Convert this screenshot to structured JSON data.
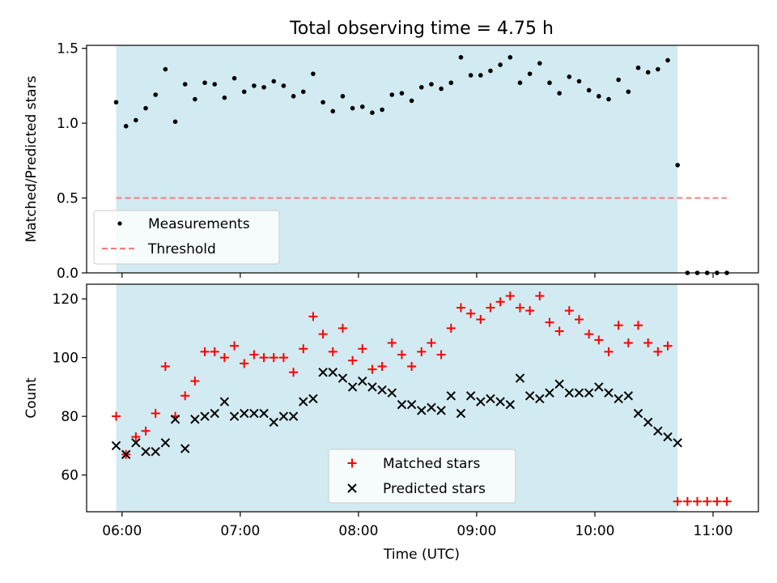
{
  "chart_data": [
    {
      "type": "scatter",
      "title": "Total observing time = 4.75 h",
      "ylabel": "Matched/Predicted stars",
      "xlabel": "",
      "ylim": [
        0,
        1.52
      ],
      "yticks": [
        0.0,
        0.5,
        1.0,
        1.5
      ],
      "ytick_labels": [
        "0.0",
        "0.5",
        "1.0",
        "1.5"
      ],
      "observing_window": [
        "05:57",
        "10:42"
      ],
      "series": [
        {
          "name": "Measurements",
          "marker": "dot",
          "color": "#000000",
          "x": [
            "05:57",
            "06:02",
            "06:07",
            "06:12",
            "06:17",
            "06:22",
            "06:27",
            "06:32",
            "06:37",
            "06:42",
            "06:47",
            "06:52",
            "06:57",
            "07:02",
            "07:07",
            "07:12",
            "07:17",
            "07:22",
            "07:27",
            "07:32",
            "07:37",
            "07:42",
            "07:47",
            "07:52",
            "07:57",
            "08:02",
            "08:07",
            "08:12",
            "08:17",
            "08:22",
            "08:27",
            "08:32",
            "08:37",
            "08:42",
            "08:47",
            "08:52",
            "08:57",
            "09:02",
            "09:07",
            "09:12",
            "09:17",
            "09:22",
            "09:27",
            "09:32",
            "09:37",
            "09:42",
            "09:47",
            "09:52",
            "09:57",
            "10:02",
            "10:07",
            "10:12",
            "10:17",
            "10:22",
            "10:27",
            "10:32",
            "10:37",
            "10:42",
            "10:47",
            "10:52",
            "10:57",
            "11:02",
            "11:07"
          ],
          "y": [
            1.14,
            0.98,
            1.02,
            1.1,
            1.19,
            1.36,
            1.01,
            1.26,
            1.16,
            1.27,
            1.26,
            1.17,
            1.3,
            1.21,
            1.25,
            1.24,
            1.28,
            1.25,
            1.18,
            1.21,
            1.33,
            1.14,
            1.08,
            1.18,
            1.1,
            1.11,
            1.07,
            1.09,
            1.19,
            1.2,
            1.15,
            1.24,
            1.26,
            1.23,
            1.27,
            1.44,
            1.32,
            1.32,
            1.35,
            1.39,
            1.44,
            1.27,
            1.33,
            1.4,
            1.27,
            1.2,
            1.31,
            1.28,
            1.22,
            1.18,
            1.16,
            1.29,
            1.21,
            1.37,
            1.34,
            1.36,
            1.42,
            0.72,
            0,
            0,
            0,
            0,
            0
          ]
        },
        {
          "name": "Threshold",
          "style": "dashed",
          "color": "#f08080",
          "x": [
            "05:57",
            "11:07"
          ],
          "y": [
            0.5,
            0.5
          ]
        }
      ],
      "legend": "lower-left",
      "grid": false
    },
    {
      "type": "scatter",
      "title": "",
      "ylabel": "Count",
      "xlabel": "Time (UTC)",
      "ylim": [
        47.5,
        125
      ],
      "yticks": [
        60,
        80,
        100,
        120
      ],
      "ytick_labels": [
        "60",
        "80",
        "100",
        "120"
      ],
      "xticks": [
        "06:00",
        "07:00",
        "08:00",
        "09:00",
        "10:00",
        "11:00"
      ],
      "observing_window": [
        "05:57",
        "10:42"
      ],
      "series": [
        {
          "name": "Matched stars",
          "marker": "plus",
          "color": "#ff0000",
          "x": [
            "05:57",
            "06:02",
            "06:07",
            "06:12",
            "06:17",
            "06:22",
            "06:27",
            "06:32",
            "06:37",
            "06:42",
            "06:47",
            "06:52",
            "06:57",
            "07:02",
            "07:07",
            "07:12",
            "07:17",
            "07:22",
            "07:27",
            "07:32",
            "07:37",
            "07:42",
            "07:47",
            "07:52",
            "07:57",
            "08:02",
            "08:07",
            "08:12",
            "08:17",
            "08:22",
            "08:27",
            "08:32",
            "08:37",
            "08:42",
            "08:47",
            "08:52",
            "08:57",
            "09:02",
            "09:07",
            "09:12",
            "09:17",
            "09:22",
            "09:27",
            "09:32",
            "09:37",
            "09:42",
            "09:47",
            "09:52",
            "09:57",
            "10:02",
            "10:07",
            "10:12",
            "10:17",
            "10:22",
            "10:27",
            "10:32",
            "10:37",
            "10:42",
            "10:47",
            "10:52",
            "10:57",
            "11:02",
            "11:07"
          ],
          "y": [
            80,
            67,
            73,
            75,
            81,
            97,
            80,
            87,
            92,
            102,
            102,
            100,
            104,
            98,
            101,
            100,
            100,
            100,
            95,
            103,
            114,
            108,
            102,
            110,
            99,
            103,
            96,
            97,
            105,
            101,
            97,
            102,
            105,
            101,
            110,
            117,
            115,
            113,
            117,
            119,
            121,
            117,
            116,
            121,
            112,
            109,
            116,
            113,
            108,
            106,
            102,
            111,
            105,
            111,
            105,
            102,
            104,
            51,
            51,
            51,
            51,
            51,
            51
          ]
        },
        {
          "name": "Predicted stars",
          "marker": "x",
          "color": "#000000",
          "x": [
            "05:57",
            "06:02",
            "06:07",
            "06:12",
            "06:17",
            "06:22",
            "06:27",
            "06:32",
            "06:37",
            "06:42",
            "06:47",
            "06:52",
            "06:57",
            "07:02",
            "07:07",
            "07:12",
            "07:17",
            "07:22",
            "07:27",
            "07:32",
            "07:37",
            "07:42",
            "07:47",
            "07:52",
            "07:57",
            "08:02",
            "08:07",
            "08:12",
            "08:17",
            "08:22",
            "08:27",
            "08:32",
            "08:37",
            "08:42",
            "08:47",
            "08:52",
            "08:57",
            "09:02",
            "09:07",
            "09:12",
            "09:17",
            "09:22",
            "09:27",
            "09:32",
            "09:37",
            "09:42",
            "09:47",
            "09:52",
            "09:57",
            "10:02",
            "10:07",
            "10:12",
            "10:17",
            "10:22",
            "10:27",
            "10:32",
            "10:37",
            "10:42"
          ],
          "y": [
            70,
            67,
            71,
            68,
            68,
            71,
            79,
            69,
            79,
            80,
            81,
            85,
            80,
            81,
            81,
            81,
            78,
            80,
            80,
            85,
            86,
            95,
            95,
            93,
            90,
            92,
            90,
            89,
            88,
            84,
            84,
            82,
            83,
            82,
            87,
            81,
            87,
            85,
            86,
            85,
            84,
            93,
            87,
            86,
            88,
            91,
            88,
            88,
            88,
            90,
            88,
            86,
            87,
            81,
            78,
            75,
            73,
            71
          ]
        }
      ],
      "legend": "lower-center",
      "grid": false
    }
  ],
  "colors": {
    "observing_window_fill": "#add8e6",
    "axes_edge": "#000000"
  }
}
